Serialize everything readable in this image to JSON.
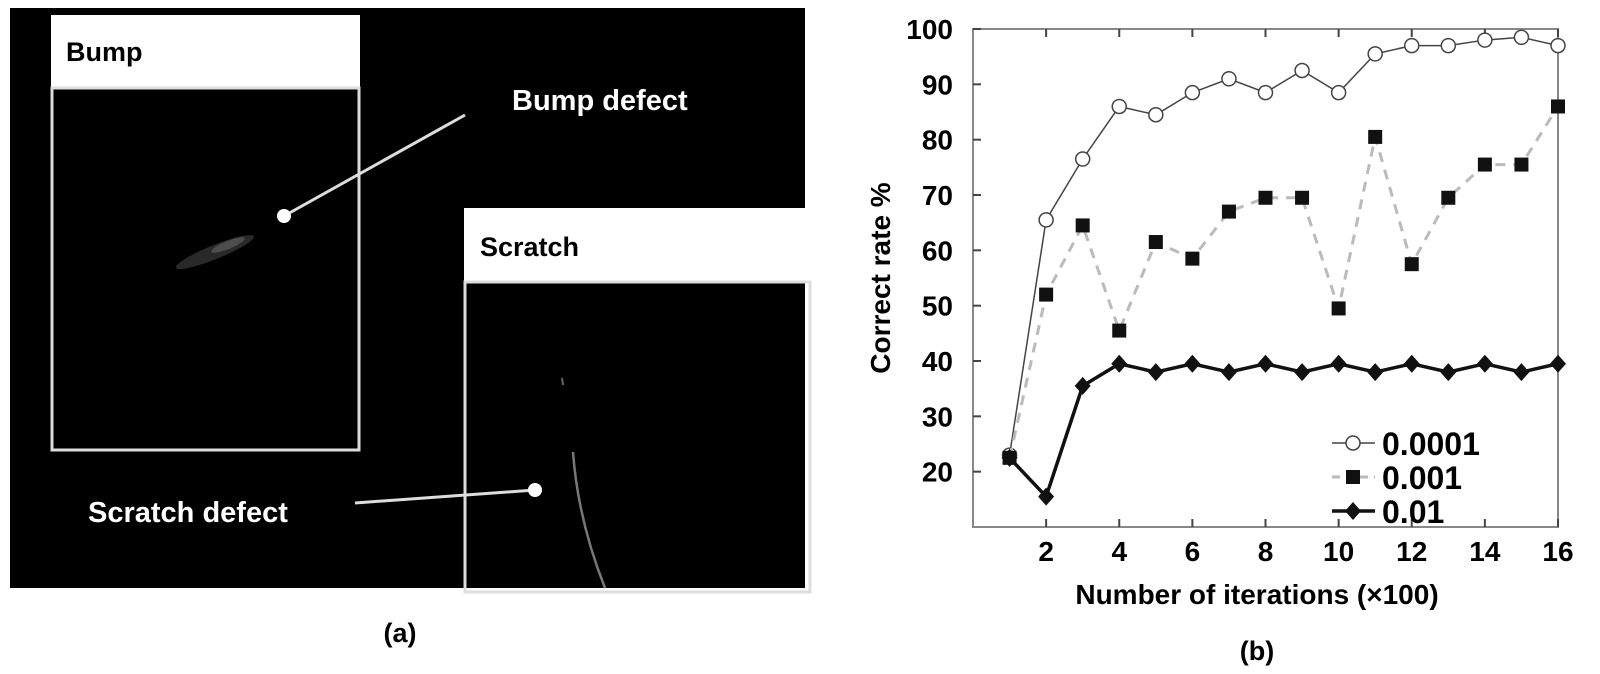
{
  "panel_a": {
    "caption": "(a)",
    "bump_title": "Bump",
    "scratch_title": "Scratch",
    "bump_annotation": "Bump defect",
    "scratch_annotation": "Scratch defect"
  },
  "panel_b": {
    "caption": "(b)"
  },
  "chart_data": {
    "type": "line",
    "xlabel": "Number of iterations (×100)",
    "ylabel": "Correct rate %",
    "xlim": [
      0,
      16
    ],
    "ylim": [
      10,
      100
    ],
    "xticks": [
      2,
      4,
      6,
      8,
      10,
      12,
      14,
      16
    ],
    "yticks": [
      20,
      30,
      40,
      50,
      60,
      70,
      80,
      90,
      100
    ],
    "grid": false,
    "legend_position": "bottom-right",
    "x": [
      1,
      2,
      3,
      4,
      5,
      6,
      7,
      8,
      9,
      10,
      11,
      12,
      13,
      14,
      15,
      16
    ],
    "series": [
      {
        "name": "0.0001",
        "marker": "open-circle",
        "line": "solid-thin",
        "color": "#555555",
        "values": [
          23,
          65.5,
          76.5,
          86,
          84.5,
          88.5,
          91,
          88.5,
          92.5,
          88.5,
          95.5,
          97,
          97,
          98,
          98.5,
          97
        ]
      },
      {
        "name": "0.001",
        "marker": "filled-square",
        "line": "dashed",
        "color": "#bbbbbb",
        "values": [
          22.5,
          52,
          64.5,
          45.5,
          61.5,
          58.5,
          67,
          69.5,
          69.5,
          49.5,
          80.5,
          57.5,
          69.5,
          75.5,
          75.5,
          86
        ]
      },
      {
        "name": "0.01",
        "marker": "filled-diamond",
        "line": "solid-thick",
        "color": "#111111",
        "values": [
          22.5,
          15.5,
          35.5,
          39.5,
          38,
          39.5,
          38,
          39.5,
          38,
          39.5,
          38,
          39.5,
          38,
          39.5,
          38,
          39.5
        ]
      }
    ]
  }
}
